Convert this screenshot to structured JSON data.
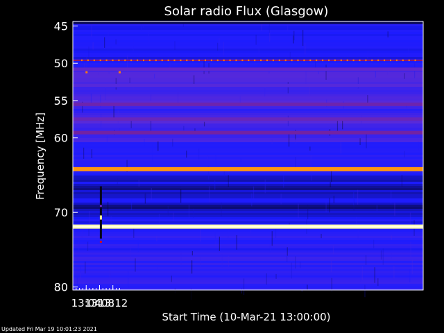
{
  "chart_data": {
    "type": "heatmap",
    "title": "Solar radio Flux (Glasgow)",
    "xlabel": "Start Time (10-Mar-21 13:00:00)",
    "ylabel": "Frequency [MHz]",
    "x_unit": "minutes",
    "xlim": [
      13.0,
      14.75
    ],
    "ylim": [
      44.4,
      80.4
    ],
    "x_ticks": [
      {
        "value": 13.0667,
        "label": "13:04"
      },
      {
        "value": 13.1333,
        "label": "13:08"
      },
      {
        "value": 13.2,
        "label": "13:12"
      }
    ],
    "y_ticks": [
      {
        "value": 45,
        "label": "45"
      },
      {
        "value": 50,
        "label": "50"
      },
      {
        "value": 55,
        "label": "55"
      },
      {
        "value": 60,
        "label": "60"
      },
      {
        "value": 70,
        "label": "70"
      },
      {
        "value": 80,
        "label": "80"
      }
    ],
    "bands": [
      {
        "freq": 44.5,
        "intensity": 0.05
      },
      {
        "freq": 49.6,
        "intensity": 0.55
      },
      {
        "freq": 50.8,
        "intensity": 0.35
      },
      {
        "freq": 53.0,
        "intensity": 0.32
      },
      {
        "freq": 55.5,
        "intensity": 0.4
      },
      {
        "freq": 57.5,
        "intensity": 0.38
      },
      {
        "freq": 59.3,
        "intensity": 0.42
      },
      {
        "freq": 64.2,
        "intensity": 0.85
      },
      {
        "freq": 71.9,
        "intensity": 1.0
      }
    ],
    "burst_time": 13.14,
    "colormap": [
      "#000000",
      "#1b1bff",
      "#5a2ad8",
      "#8a1a70",
      "#c8102a",
      "#ff8c00",
      "#ffffa0"
    ]
  },
  "footer": {
    "updated": "Updated Fri Mar 19 10:01:23 2021"
  }
}
